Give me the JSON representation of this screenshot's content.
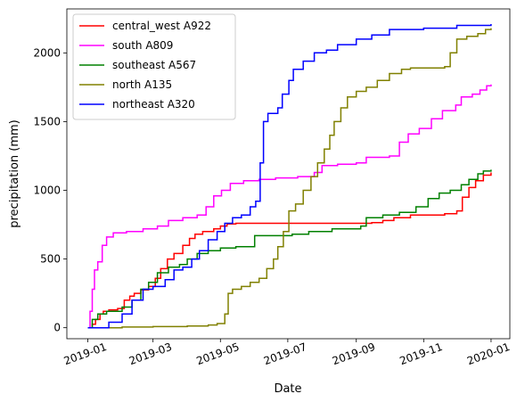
{
  "chart_data": {
    "type": "line",
    "xlabel": "Date",
    "ylabel": "precipitation (mm)",
    "xlim": [
      "2018-12-13",
      "2020-01-18"
    ],
    "ylim": [
      -80,
      2320
    ],
    "x_ticks": [
      "2019-01-01",
      "2019-03-01",
      "2019-05-01",
      "2019-07-01",
      "2019-09-01",
      "2019-11-01",
      "2020-01-01"
    ],
    "x_tick_labels": [
      "2019-01",
      "2019-03",
      "2019-05",
      "2019-07",
      "2019-09",
      "2019-11",
      "2020-01"
    ],
    "y_ticks": [
      0,
      500,
      1000,
      1500,
      2000
    ],
    "y_tick_labels": [
      "0",
      "500",
      "1000",
      "1500",
      "2000"
    ],
    "x_tick_rotation": 20,
    "grid": false,
    "legend": "upper left",
    "step": true,
    "series": [
      {
        "name": "central_west A922",
        "color": "#ff0000",
        "points": [
          [
            "2019-01-01",
            0
          ],
          [
            "2019-01-05",
            25
          ],
          [
            "2019-01-08",
            60
          ],
          [
            "2019-01-12",
            100
          ],
          [
            "2019-01-15",
            120
          ],
          [
            "2019-01-20",
            130
          ],
          [
            "2019-01-28",
            140
          ],
          [
            "2019-02-03",
            200
          ],
          [
            "2019-02-08",
            230
          ],
          [
            "2019-02-12",
            250
          ],
          [
            "2019-02-18",
            275
          ],
          [
            "2019-02-25",
            300
          ],
          [
            "2019-03-03",
            360
          ],
          [
            "2019-03-08",
            430
          ],
          [
            "2019-03-14",
            500
          ],
          [
            "2019-03-20",
            540
          ],
          [
            "2019-03-28",
            600
          ],
          [
            "2019-04-03",
            650
          ],
          [
            "2019-04-08",
            680
          ],
          [
            "2019-04-15",
            700
          ],
          [
            "2019-04-25",
            720
          ],
          [
            "2019-05-01",
            740
          ],
          [
            "2019-05-07",
            755
          ],
          [
            "2019-05-15",
            760
          ],
          [
            "2019-09-15",
            765
          ],
          [
            "2019-09-25",
            780
          ],
          [
            "2019-10-05",
            800
          ],
          [
            "2019-10-20",
            820
          ],
          [
            "2019-11-20",
            830
          ],
          [
            "2019-12-01",
            850
          ],
          [
            "2019-12-06",
            950
          ],
          [
            "2019-12-12",
            1020
          ],
          [
            "2019-12-18",
            1070
          ],
          [
            "2019-12-25",
            1110
          ],
          [
            "2020-01-01",
            1130
          ]
        ]
      },
      {
        "name": "south A809",
        "color": "#ff00ff",
        "points": [
          [
            "2019-01-01",
            0
          ],
          [
            "2019-01-03",
            120
          ],
          [
            "2019-01-05",
            280
          ],
          [
            "2019-01-07",
            420
          ],
          [
            "2019-01-10",
            480
          ],
          [
            "2019-01-14",
            600
          ],
          [
            "2019-01-18",
            660
          ],
          [
            "2019-01-24",
            690
          ],
          [
            "2019-02-05",
            700
          ],
          [
            "2019-02-20",
            720
          ],
          [
            "2019-03-05",
            740
          ],
          [
            "2019-03-15",
            780
          ],
          [
            "2019-03-28",
            800
          ],
          [
            "2019-04-10",
            820
          ],
          [
            "2019-04-18",
            880
          ],
          [
            "2019-04-25",
            960
          ],
          [
            "2019-05-02",
            1000
          ],
          [
            "2019-05-10",
            1050
          ],
          [
            "2019-05-22",
            1070
          ],
          [
            "2019-06-05",
            1080
          ],
          [
            "2019-06-20",
            1090
          ],
          [
            "2019-07-10",
            1100
          ],
          [
            "2019-07-25",
            1130
          ],
          [
            "2019-08-01",
            1180
          ],
          [
            "2019-08-15",
            1190
          ],
          [
            "2019-09-01",
            1200
          ],
          [
            "2019-09-10",
            1240
          ],
          [
            "2019-10-01",
            1250
          ],
          [
            "2019-10-10",
            1350
          ],
          [
            "2019-10-18",
            1410
          ],
          [
            "2019-10-28",
            1450
          ],
          [
            "2019-11-08",
            1520
          ],
          [
            "2019-11-18",
            1580
          ],
          [
            "2019-11-30",
            1620
          ],
          [
            "2019-12-05",
            1680
          ],
          [
            "2019-12-15",
            1700
          ],
          [
            "2019-12-22",
            1730
          ],
          [
            "2019-12-28",
            1760
          ],
          [
            "2020-01-01",
            1770
          ]
        ]
      },
      {
        "name": "southeast A567",
        "color": "#008000",
        "points": [
          [
            "2019-01-01",
            0
          ],
          [
            "2019-01-05",
            60
          ],
          [
            "2019-01-10",
            100
          ],
          [
            "2019-01-18",
            120
          ],
          [
            "2019-02-01",
            150
          ],
          [
            "2019-02-10",
            200
          ],
          [
            "2019-02-18",
            280
          ],
          [
            "2019-02-25",
            330
          ],
          [
            "2019-03-05",
            400
          ],
          [
            "2019-03-15",
            440
          ],
          [
            "2019-03-25",
            460
          ],
          [
            "2019-04-01",
            500
          ],
          [
            "2019-04-10",
            540
          ],
          [
            "2019-04-20",
            560
          ],
          [
            "2019-05-01",
            580
          ],
          [
            "2019-05-15",
            590
          ],
          [
            "2019-06-01",
            670
          ],
          [
            "2019-07-05",
            680
          ],
          [
            "2019-07-20",
            700
          ],
          [
            "2019-08-10",
            720
          ],
          [
            "2019-09-05",
            740
          ],
          [
            "2019-09-10",
            800
          ],
          [
            "2019-09-25",
            820
          ],
          [
            "2019-10-10",
            840
          ],
          [
            "2019-10-25",
            880
          ],
          [
            "2019-11-05",
            940
          ],
          [
            "2019-11-15",
            980
          ],
          [
            "2019-11-25",
            1000
          ],
          [
            "2019-12-05",
            1040
          ],
          [
            "2019-12-12",
            1080
          ],
          [
            "2019-12-20",
            1120
          ],
          [
            "2019-12-25",
            1140
          ],
          [
            "2020-01-01",
            1150
          ]
        ]
      },
      {
        "name": "north A135",
        "color": "#808000",
        "points": [
          [
            "2019-01-01",
            0
          ],
          [
            "2019-02-01",
            5
          ],
          [
            "2019-03-01",
            8
          ],
          [
            "2019-04-01",
            12
          ],
          [
            "2019-04-20",
            20
          ],
          [
            "2019-04-28",
            30
          ],
          [
            "2019-05-05",
            100
          ],
          [
            "2019-05-08",
            250
          ],
          [
            "2019-05-12",
            280
          ],
          [
            "2019-05-20",
            300
          ],
          [
            "2019-05-28",
            330
          ],
          [
            "2019-06-05",
            360
          ],
          [
            "2019-06-12",
            430
          ],
          [
            "2019-06-18",
            500
          ],
          [
            "2019-06-22",
            590
          ],
          [
            "2019-06-27",
            700
          ],
          [
            "2019-07-02",
            850
          ],
          [
            "2019-07-08",
            900
          ],
          [
            "2019-07-15",
            1000
          ],
          [
            "2019-07-22",
            1100
          ],
          [
            "2019-07-28",
            1200
          ],
          [
            "2019-08-03",
            1300
          ],
          [
            "2019-08-08",
            1400
          ],
          [
            "2019-08-12",
            1500
          ],
          [
            "2019-08-18",
            1600
          ],
          [
            "2019-08-24",
            1680
          ],
          [
            "2019-09-01",
            1720
          ],
          [
            "2019-09-10",
            1750
          ],
          [
            "2019-09-20",
            1800
          ],
          [
            "2019-10-01",
            1850
          ],
          [
            "2019-10-12",
            1880
          ],
          [
            "2019-10-20",
            1890
          ],
          [
            "2019-11-20",
            1900
          ],
          [
            "2019-11-25",
            2000
          ],
          [
            "2019-12-01",
            2100
          ],
          [
            "2019-12-10",
            2120
          ],
          [
            "2019-12-20",
            2140
          ],
          [
            "2019-12-27",
            2170
          ],
          [
            "2020-01-01",
            2180
          ]
        ]
      },
      {
        "name": "northeast A320",
        "color": "#0000ff",
        "points": [
          [
            "2019-01-01",
            0
          ],
          [
            "2019-01-20",
            40
          ],
          [
            "2019-02-01",
            100
          ],
          [
            "2019-02-10",
            200
          ],
          [
            "2019-02-20",
            280
          ],
          [
            "2019-03-01",
            300
          ],
          [
            "2019-03-12",
            350
          ],
          [
            "2019-03-20",
            420
          ],
          [
            "2019-03-28",
            440
          ],
          [
            "2019-04-05",
            500
          ],
          [
            "2019-04-12",
            560
          ],
          [
            "2019-04-20",
            640
          ],
          [
            "2019-04-28",
            700
          ],
          [
            "2019-05-05",
            760
          ],
          [
            "2019-05-12",
            800
          ],
          [
            "2019-05-20",
            820
          ],
          [
            "2019-05-28",
            880
          ],
          [
            "2019-06-02",
            920
          ],
          [
            "2019-06-06",
            1200
          ],
          [
            "2019-06-09",
            1500
          ],
          [
            "2019-06-13",
            1560
          ],
          [
            "2019-06-22",
            1600
          ],
          [
            "2019-06-26",
            1700
          ],
          [
            "2019-07-02",
            1800
          ],
          [
            "2019-07-06",
            1880
          ],
          [
            "2019-07-15",
            1940
          ],
          [
            "2019-07-25",
            2000
          ],
          [
            "2019-08-05",
            2020
          ],
          [
            "2019-08-15",
            2060
          ],
          [
            "2019-09-01",
            2100
          ],
          [
            "2019-09-15",
            2130
          ],
          [
            "2019-10-01",
            2170
          ],
          [
            "2019-11-01",
            2180
          ],
          [
            "2019-12-01",
            2200
          ],
          [
            "2020-01-01",
            2210
          ]
        ]
      }
    ]
  }
}
